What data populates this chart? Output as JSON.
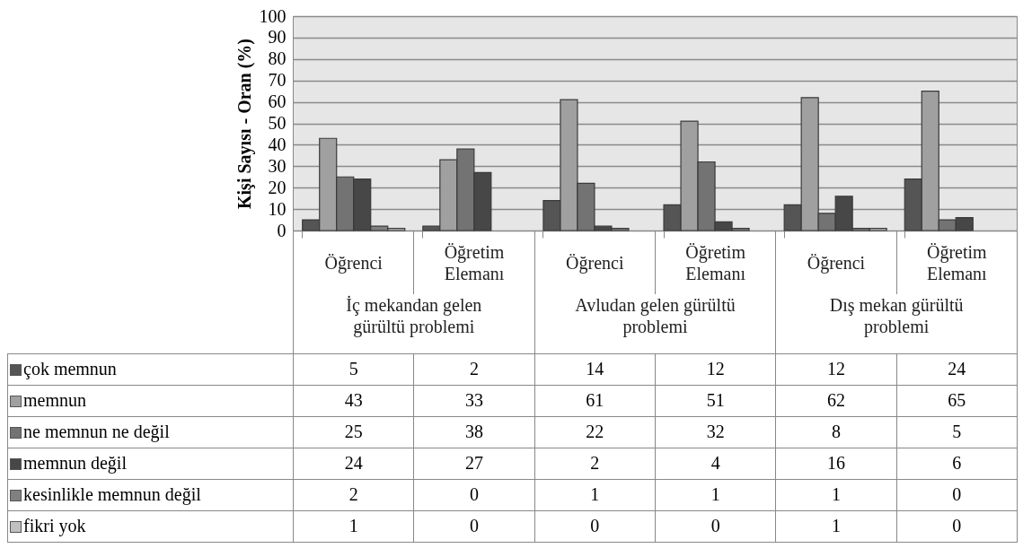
{
  "chart_data": {
    "type": "bar",
    "ylabel": "Kişi Sayısı - Oran (%)",
    "categories": [
      "Öğrenci",
      "Öğretim Elemanı",
      "Öğrenci",
      "Öğretim Elemanı",
      "Öğrenci",
      "Öğretim Elemanı"
    ],
    "annotations": [
      "İç mekandan gelen gürültü problemi",
      "Avludan gelen gürültü problemi",
      "Dış mekan gürültü problemi"
    ],
    "series": [
      {
        "name": "çok memnun",
        "color": "#555555",
        "values": [
          5,
          2,
          14,
          12,
          12,
          24
        ]
      },
      {
        "name": "memnun",
        "color": "#a0a0a0",
        "values": [
          43,
          33,
          61,
          51,
          62,
          65
        ]
      },
      {
        "name": "ne memnun ne değil",
        "color": "#737373",
        "values": [
          25,
          38,
          22,
          32,
          8,
          5
        ]
      },
      {
        "name": "memnun değil",
        "color": "#474747",
        "values": [
          24,
          27,
          2,
          4,
          16,
          6
        ]
      },
      {
        "name": "kesinlikle memnun değil",
        "color": "#808080",
        "values": [
          2,
          0,
          1,
          1,
          1,
          0
        ]
      },
      {
        "name": "fikri yok",
        "color": "#c0c0c0",
        "values": [
          1,
          0,
          0,
          0,
          1,
          0
        ]
      }
    ],
    "ylim": [
      0,
      100
    ],
    "yticks": [
      0,
      10,
      20,
      30,
      40,
      50,
      60,
      70,
      80,
      90,
      100
    ],
    "grid": "y",
    "data_labels": true,
    "legend": "bottom"
  }
}
